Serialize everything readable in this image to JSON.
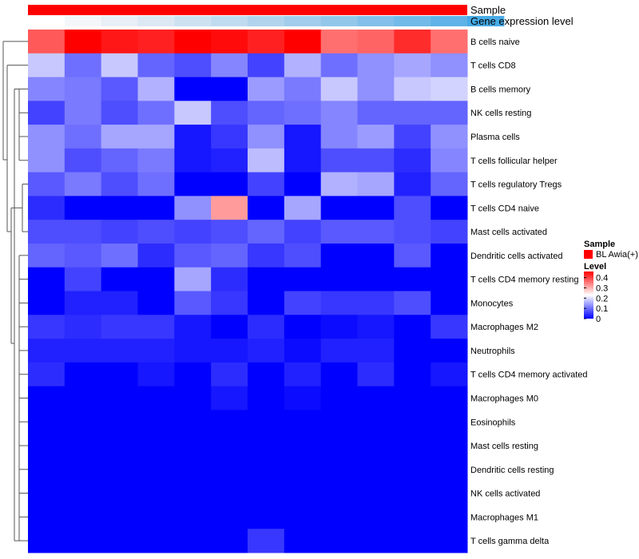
{
  "chart_data": {
    "type": "heatmap",
    "annotations": {
      "sample_label": "Sample",
      "expression_label": "Gene expression level",
      "sample_color": "#ff0000",
      "expression_colors": [
        "#ffffff",
        "#f4f7fa",
        "#e8eff6",
        "#dce8f3",
        "#cde2f1",
        "#bfdbef",
        "#b1d4ed",
        "#a1cdeb",
        "#92c7ea",
        "#82c0e9",
        "#72bae8",
        "#5fb3e7",
        "#48abe6"
      ]
    },
    "rows": [
      "B cells naive",
      "T cells CD8",
      "B cells memory",
      "NK cells resting",
      "Plasma cells",
      "T cells follicular helper",
      "T cells regulatory  Tregs",
      "T cells CD4 naive",
      "Mast cells activated",
      "Dendritic cells activated",
      "T cells CD4 memory resting",
      "Monocytes",
      "Macrophages M2",
      "Neutrophils",
      "T cells CD4 memory activated",
      "Macrophages M0",
      "Eosinophils",
      "Mast cells resting",
      "Dendritic cells resting",
      "NK cells activated",
      "Macrophages M1",
      "T cells gamma delta"
    ],
    "values": [
      [
        0.38,
        0.46,
        0.44,
        0.43,
        0.46,
        0.45,
        0.43,
        0.46,
        0.36,
        0.37,
        0.42,
        0.36
      ],
      [
        0.18,
        0.1,
        0.18,
        0.09,
        0.07,
        0.12,
        0.06,
        0.16,
        0.1,
        0.13,
        0.15,
        0.13
      ],
      [
        0.12,
        0.11,
        0.08,
        0.16,
        0.0,
        0.0,
        0.14,
        0.11,
        0.18,
        0.13,
        0.18,
        0.19
      ],
      [
        0.06,
        0.11,
        0.07,
        0.1,
        0.18,
        0.07,
        0.09,
        0.1,
        0.12,
        0.09,
        0.09,
        0.09
      ],
      [
        0.13,
        0.1,
        0.15,
        0.15,
        0.02,
        0.05,
        0.13,
        0.02,
        0.12,
        0.14,
        0.06,
        0.13
      ],
      [
        0.13,
        0.07,
        0.09,
        0.11,
        0.02,
        0.03,
        0.17,
        0.02,
        0.07,
        0.07,
        0.04,
        0.12
      ],
      [
        0.08,
        0.11,
        0.07,
        0.1,
        0.0,
        0.0,
        0.06,
        0.0,
        0.16,
        0.15,
        0.03,
        0.09
      ],
      [
        0.04,
        0.0,
        0.0,
        0.0,
        0.13,
        0.32,
        0.0,
        0.15,
        0.0,
        0.0,
        0.07,
        0.0
      ],
      [
        0.07,
        0.07,
        0.06,
        0.07,
        0.06,
        0.07,
        0.09,
        0.06,
        0.08,
        0.08,
        0.07,
        0.06
      ],
      [
        0.09,
        0.08,
        0.1,
        0.04,
        0.08,
        0.09,
        0.05,
        0.07,
        0.0,
        0.0,
        0.08,
        0.0
      ],
      [
        0.0,
        0.06,
        0.0,
        0.0,
        0.15,
        0.04,
        0.0,
        0.0,
        0.0,
        0.0,
        0.0,
        0.0
      ],
      [
        0.0,
        0.03,
        0.03,
        0.0,
        0.08,
        0.05,
        0.0,
        0.06,
        0.05,
        0.05,
        0.07,
        0.0
      ],
      [
        0.05,
        0.04,
        0.05,
        0.05,
        0.02,
        0.0,
        0.04,
        0.0,
        0.01,
        0.02,
        0.0,
        0.05
      ],
      [
        0.03,
        0.03,
        0.03,
        0.03,
        0.02,
        0.02,
        0.03,
        0.01,
        0.03,
        0.03,
        0.0,
        0.0
      ],
      [
        0.04,
        0.0,
        0.0,
        0.02,
        0.0,
        0.04,
        0.0,
        0.03,
        0.0,
        0.04,
        0.0,
        0.02
      ],
      [
        0.0,
        0.0,
        0.0,
        0.0,
        0.0,
        0.02,
        0.0,
        0.01,
        0.0,
        0.0,
        0.0,
        0.0
      ],
      [
        0.0,
        0.0,
        0.0,
        0.0,
        0.0,
        0.0,
        0.0,
        0.0,
        0.0,
        0.0,
        0.0,
        0.0
      ],
      [
        0.0,
        0.0,
        0.0,
        0.0,
        0.0,
        0.0,
        0.0,
        0.0,
        0.0,
        0.0,
        0.0,
        0.0
      ],
      [
        0.0,
        0.0,
        0.0,
        0.0,
        0.0,
        0.0,
        0.0,
        0.0,
        0.0,
        0.0,
        0.0,
        0.0
      ],
      [
        0.0,
        0.0,
        0.0,
        0.0,
        0.0,
        0.0,
        0.0,
        0.0,
        0.0,
        0.0,
        0.0,
        0.0
      ],
      [
        0.0,
        0.0,
        0.0,
        0.0,
        0.0,
        0.0,
        0.0,
        0.0,
        0.0,
        0.0,
        0.0,
        0.0
      ],
      [
        0.0,
        0.0,
        0.0,
        0.0,
        0.0,
        0.0,
        0.05,
        0.0,
        0.0,
        0.0,
        0.0,
        0.0
      ]
    ],
    "color_scale": {
      "min": 0,
      "max": 0.46,
      "low_color": "#0000ff",
      "mid_color": "#ffffff",
      "high_color": "#ff0000",
      "mid_value": 0.23
    },
    "legend": {
      "sample_title": "Sample",
      "sample_entry": "BL Awia(+)",
      "level_title": "Level",
      "ticks": [
        0.4,
        0.3,
        0.2,
        0.1,
        0
      ],
      "tick_labels": [
        "0.4",
        "0.3",
        "0.2",
        "0.1",
        "0"
      ]
    }
  }
}
